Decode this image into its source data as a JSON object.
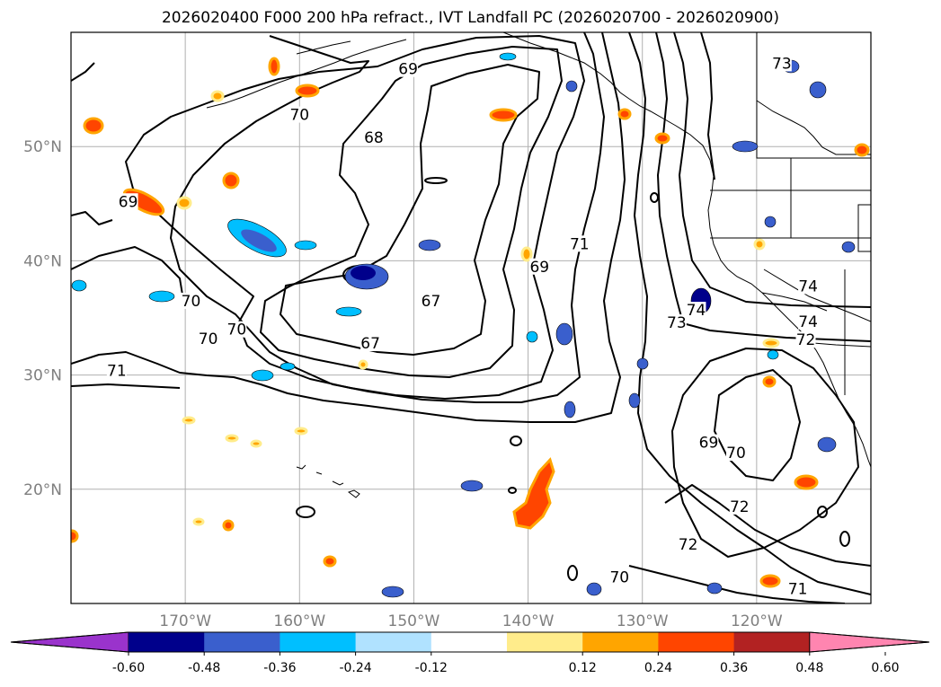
{
  "title": "2026020400 F000 200 hPa refract., IVT Landfall PC (2026020700 - 2026020900)",
  "axes": {
    "lat_labels": [
      {
        "text": "50°N",
        "lat": 50
      },
      {
        "text": "40°N",
        "lat": 40
      },
      {
        "text": "30°N",
        "lat": 30
      },
      {
        "text": "20°N",
        "lat": 20
      }
    ],
    "lon_labels": [
      {
        "text": "170°W",
        "lon": -170
      },
      {
        "text": "160°W",
        "lon": -160
      },
      {
        "text": "150°W",
        "lon": -150
      },
      {
        "text": "140°W",
        "lon": -140
      },
      {
        "text": "130°W",
        "lon": -130
      },
      {
        "text": "120°W",
        "lon": -120
      }
    ],
    "lon_range": [
      -180,
      -110
    ],
    "lat_range": [
      10,
      60
    ],
    "grid": true
  },
  "colorbar": {
    "ticks": [
      "-0.60",
      "-0.48",
      "-0.36",
      "-0.24",
      "-0.12",
      "0.12",
      "0.24",
      "0.36",
      "0.48",
      "0.60"
    ],
    "under_color": "#9a33cc",
    "over_color": "#ff85b0",
    "colors": [
      "#00008b",
      "#3a5fcd",
      "#00bfff",
      "#b0e2ff",
      "#ffffff",
      "#ffec8b",
      "#ffa500",
      "#ff4500",
      "#b22222"
    ]
  },
  "contour_labels": [
    {
      "text": "69",
      "lon": -150.5,
      "lat": 56.8
    },
    {
      "text": "70",
      "lon": -160,
      "lat": 52.8
    },
    {
      "text": "68",
      "lon": -153.5,
      "lat": 50.8
    },
    {
      "text": "69",
      "lon": -175,
      "lat": 45.2
    },
    {
      "text": "71",
      "lon": -135.5,
      "lat": 41.5
    },
    {
      "text": "69",
      "lon": -139,
      "lat": 39.5
    },
    {
      "text": "70",
      "lon": -169.5,
      "lat": 36.5
    },
    {
      "text": "67",
      "lon": -148.5,
      "lat": 36.5
    },
    {
      "text": "70",
      "lon": -165.5,
      "lat": 34
    },
    {
      "text": "70",
      "lon": -168,
      "lat": 33.2
    },
    {
      "text": "67",
      "lon": -153.8,
      "lat": 32.8
    },
    {
      "text": "71",
      "lon": -176,
      "lat": 30.4
    },
    {
      "text": "74",
      "lon": -115.5,
      "lat": 37.8
    },
    {
      "text": "74",
      "lon": -125.3,
      "lat": 35.7
    },
    {
      "text": "73",
      "lon": -127,
      "lat": 34.6
    },
    {
      "text": "74",
      "lon": -115.5,
      "lat": 34.7
    },
    {
      "text": "72",
      "lon": -115.7,
      "lat": 33.1
    },
    {
      "text": "69",
      "lon": -124.2,
      "lat": 24.1
    },
    {
      "text": "70",
      "lon": -121.8,
      "lat": 23.2
    },
    {
      "text": "72",
      "lon": -121.5,
      "lat": 18.5
    },
    {
      "text": "72",
      "lon": -126,
      "lat": 15.2
    },
    {
      "text": "70",
      "lon": -132,
      "lat": 12.3
    },
    {
      "text": "71",
      "lon": -116.4,
      "lat": 11.3
    },
    {
      "text": "73",
      "lon": -117.8,
      "lat": 57.3
    }
  ]
}
